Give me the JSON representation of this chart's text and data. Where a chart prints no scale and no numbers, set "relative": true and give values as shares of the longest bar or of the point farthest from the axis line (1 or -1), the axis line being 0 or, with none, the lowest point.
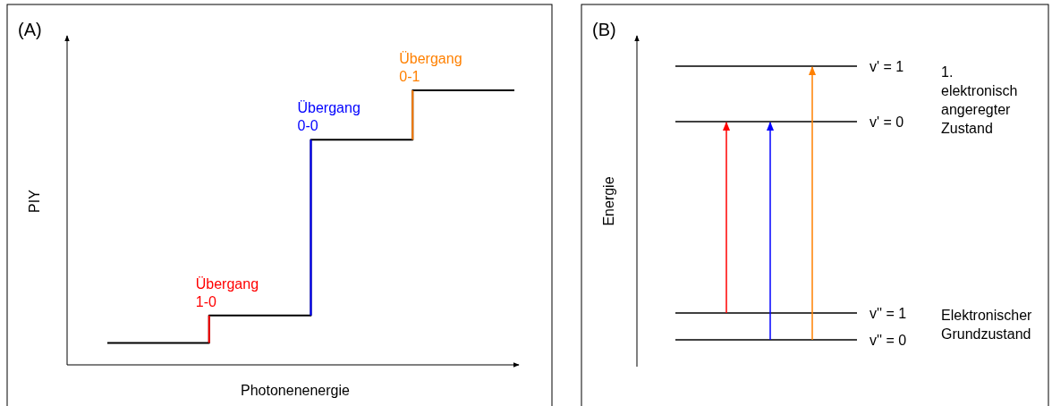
{
  "chart_data": [
    {
      "type": "step",
      "title": "(A)",
      "xlabel": "Photonenenergie",
      "ylabel": "PIY",
      "relative": true,
      "categories": [
        null,
        null,
        null,
        null,
        null
      ],
      "series": [
        {
          "color": "#000000",
          "colors": [
            null,
            "#ff0000",
            "#0000ff",
            "#ff8000",
            null
          ],
          "values": [
            0.08,
            0.18,
            0.82,
            1,
            1
          ]
        }
      ],
      "annotations": [
        "Übergang 1-0",
        "Übergang 0-0",
        "Übergang 0-1"
      ]
    },
    {
      "type": "other",
      "title": "(B)",
      "ylabel": "Energie",
      "annotations": [
        "v' = 1",
        "v' = 0",
        "v'' = 1",
        "v'' = 0",
        "1. elektronisch angeregter Zustand",
        "Elektronischer Grundzustand"
      ]
    }
  ]
}
